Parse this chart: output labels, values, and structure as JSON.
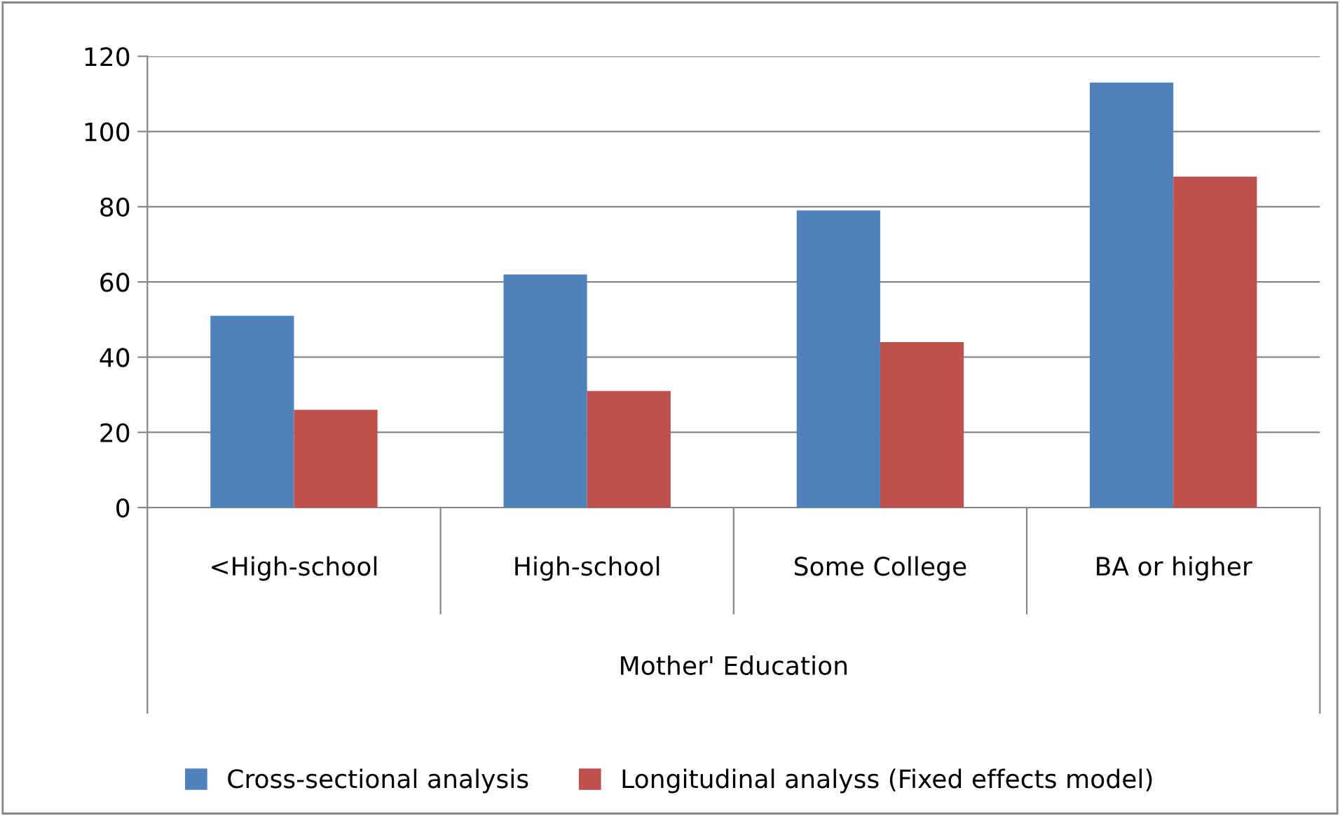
{
  "chart_data": {
    "type": "bar",
    "xlabel": "Mother' Education",
    "categories": [
      "<High-school",
      "High-school",
      "Some College",
      "BA or higher"
    ],
    "series": [
      {
        "name": "Cross-sectional analysis",
        "color": "#4f81bd",
        "values": [
          51,
          62,
          79,
          113
        ]
      },
      {
        "name": "Longitudinal analyss (Fixed effects model)",
        "color": "#c0504d",
        "values": [
          26,
          31,
          44,
          88
        ]
      }
    ],
    "ylim": [
      0,
      120
    ],
    "yticks": [
      0,
      20,
      40,
      60,
      80,
      100,
      120
    ],
    "grid": "y",
    "legend": "bottom"
  }
}
